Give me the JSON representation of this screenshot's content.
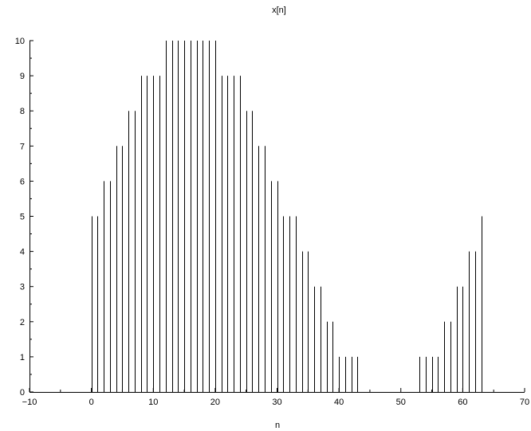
{
  "chart_data": {
    "type": "stem",
    "title": "x[n]",
    "xlabel": "n",
    "ylabel": "",
    "xlim": [
      -10,
      70
    ],
    "ylim": [
      0,
      10
    ],
    "x_ticks": [
      -10,
      0,
      10,
      20,
      30,
      40,
      50,
      60,
      70
    ],
    "y_ticks": [
      0,
      1,
      2,
      3,
      4,
      5,
      6,
      7,
      8,
      9,
      10
    ],
    "grid": false,
    "series": [
      {
        "x": [
          0,
          1,
          2,
          3,
          4,
          5,
          6,
          7,
          8,
          9,
          10,
          11,
          12,
          13,
          14,
          15,
          16,
          17,
          18,
          19,
          20,
          21,
          22,
          23,
          24,
          25,
          26,
          27,
          28,
          29,
          30,
          31,
          32,
          33,
          34,
          35,
          36,
          37,
          38,
          39,
          40,
          41,
          42,
          43,
          44,
          45,
          46,
          47,
          48,
          49,
          50,
          51,
          52,
          53,
          54,
          55,
          56,
          57,
          58,
          59,
          60,
          61,
          62,
          63
        ],
        "y": [
          5,
          5,
          6,
          6,
          7,
          7,
          8,
          8,
          9,
          9,
          9,
          9,
          10,
          10,
          10,
          10,
          10,
          10,
          10,
          10,
          10,
          9,
          9,
          9,
          9,
          8,
          8,
          7,
          7,
          6,
          6,
          5,
          5,
          5,
          4,
          4,
          3,
          3,
          2,
          2,
          1,
          1,
          1,
          1,
          0,
          0,
          0,
          0,
          0,
          0,
          0,
          0,
          0,
          1,
          1,
          1,
          1,
          2,
          2,
          3,
          3,
          4,
          4,
          5
        ]
      }
    ],
    "line_color": "#000000"
  }
}
